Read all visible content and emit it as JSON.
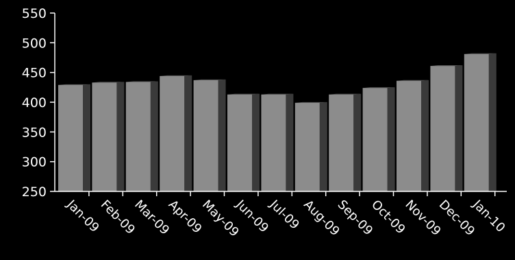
{
  "chart_data": {
    "type": "bar",
    "categories": [
      "Jan-09",
      "Feb-09",
      "Mar-09",
      "Apr-09",
      "May-09",
      "Jun-09",
      "Jul-09",
      "Aug-09",
      "Sep-09",
      "Oct-09",
      "Nov-09",
      "Dec-09",
      "Jan-10"
    ],
    "values": [
      429,
      433,
      434,
      444,
      437,
      413,
      413,
      399,
      413,
      424,
      436,
      461,
      481
    ],
    "title": "",
    "xlabel": "",
    "ylabel": "",
    "ylim": [
      250,
      550
    ],
    "yticks": [
      250,
      300,
      350,
      400,
      450,
      500,
      550
    ],
    "grid": false,
    "legend": "none",
    "colors": {
      "background": "#000000",
      "bar_front": "#8c8c8c",
      "bar_side": "#3a3a3a",
      "axis": "#ffffff",
      "text": "#ffffff"
    }
  }
}
